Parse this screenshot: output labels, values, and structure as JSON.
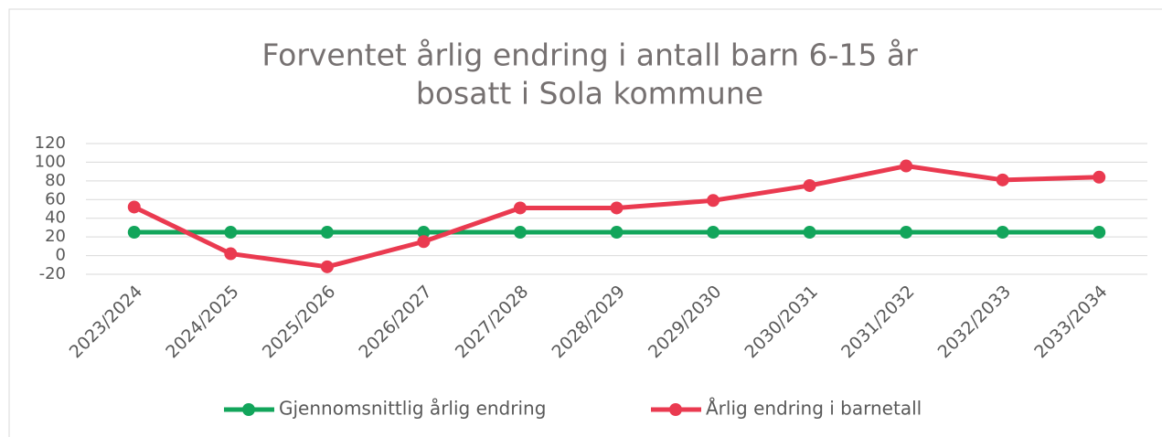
{
  "chart_data": {
    "type": "line",
    "title": [
      "Forventet årlig endring i antall barn 6-15 år",
      "bosatt i Sola kommune"
    ],
    "categories": [
      "2023/2024",
      "2024/2025",
      "2025/2026",
      "2026/2027",
      "2027/2028",
      "2028/2029",
      "2029/2030",
      "2030/2031",
      "2031/2032",
      "2032/2033",
      "2033/2034"
    ],
    "series": [
      {
        "name": "Gjennomsnittlig årlig endring",
        "color": "#12a55b",
        "values": [
          25,
          25,
          25,
          25,
          25,
          25,
          25,
          25,
          25,
          25,
          25
        ]
      },
      {
        "name": "Årlig endring i barnetall",
        "color": "#ea3a50",
        "values": [
          52,
          2,
          -12,
          15,
          51,
          51,
          59,
          75,
          96,
          81,
          84
        ]
      }
    ],
    "ylim": [
      -20,
      120
    ],
    "yticks": [
      -20,
      0,
      20,
      40,
      60,
      80,
      100,
      120
    ],
    "grid": true,
    "legend": "bottom"
  }
}
